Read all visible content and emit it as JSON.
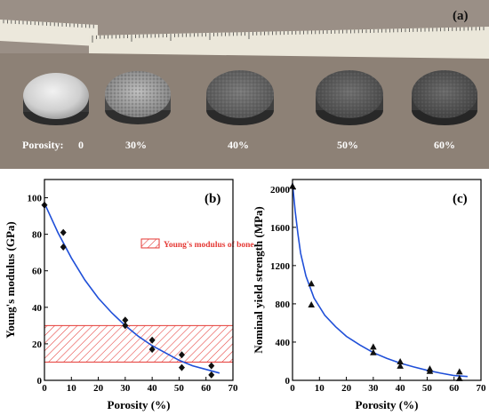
{
  "panel_a": {
    "label": "(a)",
    "porosity_prefix": "Porosity:",
    "samples": [
      "0",
      "30%",
      "40%",
      "50%",
      "60%"
    ],
    "colors": {
      "background": "#8d8176",
      "ruler": "#e9e5d7",
      "label_text": "#ffffff"
    }
  },
  "chart_data": [
    {
      "type": "scatter",
      "panel_label": "(b)",
      "xlabel": "Porosity (%)",
      "ylabel": "Young's modulus (GPa)",
      "xlim": [
        0,
        70
      ],
      "ylim": [
        0,
        110
      ],
      "xticks": [
        0,
        10,
        20,
        30,
        40,
        50,
        60,
        70
      ],
      "yticks": [
        0,
        20,
        40,
        60,
        80,
        100
      ],
      "series": [
        {
          "marker": "diamond",
          "x": [
            0,
            7,
            7,
            30,
            30,
            40,
            40,
            51,
            51,
            62,
            62
          ],
          "y": [
            96,
            81,
            73,
            33,
            30,
            22,
            17,
            14,
            7,
            8,
            3
          ]
        }
      ],
      "fit_curve": {
        "x": [
          0,
          5,
          10,
          15,
          20,
          25,
          30,
          35,
          40,
          45,
          50,
          55,
          60,
          65
        ],
        "y": [
          97,
          81,
          67,
          55,
          45,
          37,
          30,
          24,
          19,
          15,
          11,
          8,
          6,
          4
        ]
      },
      "band": {
        "y_range": [
          10,
          30
        ],
        "label": "Young's modulus of bone"
      },
      "colors": {
        "curve": "#1f4fd8",
        "band": "#e53935",
        "marker": "#111111"
      }
    },
    {
      "type": "scatter",
      "panel_label": "(c)",
      "xlabel": "Porosity (%)",
      "ylabel": "Nominal yield strength (MPa)",
      "xlim": [
        0,
        70
      ],
      "ylim": [
        0,
        2100
      ],
      "xticks": [
        0,
        10,
        20,
        30,
        40,
        50,
        60,
        70
      ],
      "yticks": [
        0,
        400,
        800,
        1200,
        1600,
        2000
      ],
      "series": [
        {
          "marker": "triangle",
          "x": [
            0,
            7,
            7,
            30,
            30,
            40,
            40,
            51,
            51,
            62,
            62
          ],
          "y": [
            2030,
            1010,
            790,
            350,
            290,
            195,
            150,
            120,
            95,
            90,
            20
          ]
        }
      ],
      "fit_curve": {
        "x": [
          0,
          1,
          2,
          3,
          5,
          8,
          12,
          16,
          20,
          25,
          30,
          35,
          40,
          45,
          50,
          55,
          60,
          65
        ],
        "y": [
          2060,
          1770,
          1530,
          1330,
          1090,
          860,
          680,
          560,
          460,
          370,
          290,
          230,
          180,
          140,
          105,
          75,
          50,
          40
        ]
      },
      "colors": {
        "curve": "#1f4fd8",
        "marker": "#111111"
      }
    }
  ]
}
